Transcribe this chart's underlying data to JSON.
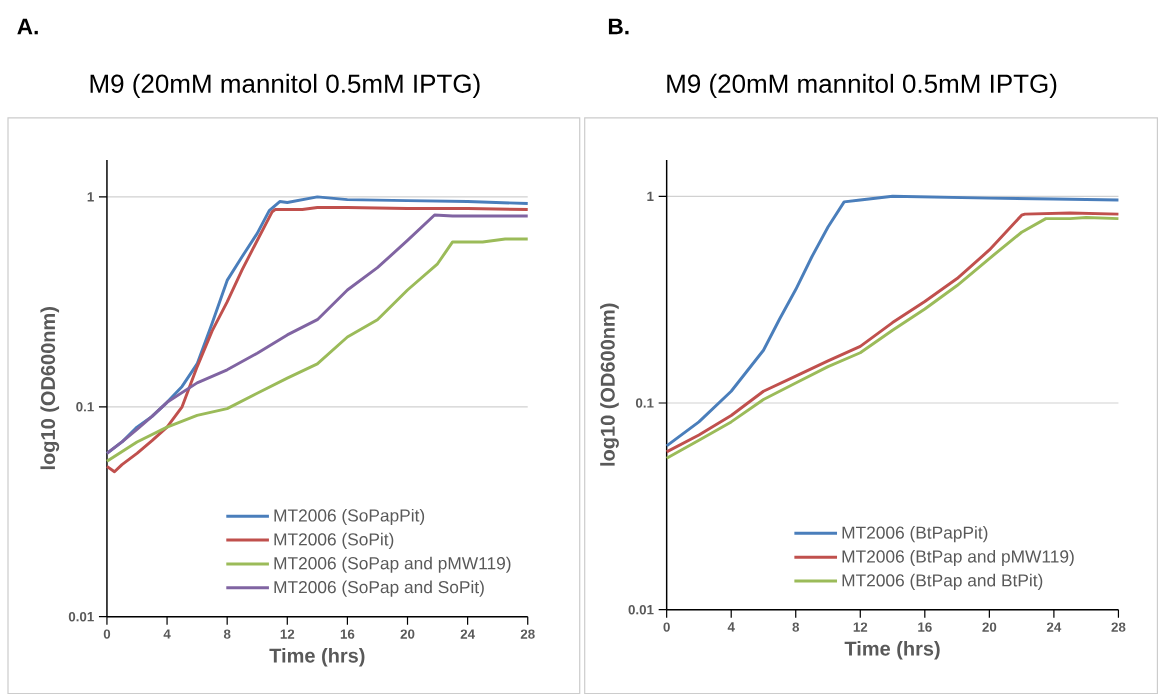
{
  "chart_data": [
    {
      "type": "line",
      "title": "M9 (20mM mannitol 0.5mM IPTG)",
      "annotations": [
        "A."
      ],
      "xlabel": "Time (hrs)",
      "ylabel": "log10 (OD600nm)",
      "log": "y",
      "grid": "y",
      "legend": "bottom",
      "marker": "none",
      "line_style": "solid",
      "xlim": [
        0,
        28
      ],
      "xticks": [
        0,
        4,
        8,
        12,
        16,
        20,
        24,
        28
      ],
      "ylim": [
        0.01,
        1.5
      ],
      "yticks": [
        0.01,
        0.1,
        1
      ],
      "series": [
        {
          "name": "MT2006 (SoPapPit)",
          "color": "#4a7ebb",
          "x": [
            0,
            1,
            2,
            3,
            4,
            5,
            6,
            7,
            8,
            9,
            10,
            10.8,
            11.5,
            12,
            14,
            16,
            20,
            24,
            28
          ],
          "values": [
            0.06,
            0.068,
            0.08,
            0.09,
            0.105,
            0.125,
            0.16,
            0.25,
            0.4,
            0.52,
            0.67,
            0.86,
            0.95,
            0.94,
            1.0,
            0.97,
            0.96,
            0.95,
            0.93
          ]
        },
        {
          "name": "MT2006 (SoPit)",
          "color": "#c0504d",
          "x": [
            0,
            0.5,
            1,
            2,
            3,
            4,
            5,
            6,
            7,
            8,
            9,
            10,
            11,
            11.2,
            13,
            14,
            16,
            20,
            24,
            28
          ],
          "values": [
            0.052,
            0.049,
            0.053,
            0.06,
            0.069,
            0.08,
            0.1,
            0.155,
            0.23,
            0.316,
            0.45,
            0.62,
            0.85,
            0.87,
            0.87,
            0.89,
            0.89,
            0.88,
            0.88,
            0.87
          ]
        },
        {
          "name": "MT2006 (SoPap and pMW119)",
          "color": "#9bbb59",
          "x": [
            0,
            2,
            4,
            6,
            8,
            10,
            12,
            14,
            16,
            18,
            20,
            22,
            23,
            25,
            26.5,
            28
          ],
          "values": [
            0.055,
            0.068,
            0.08,
            0.091,
            0.098,
            0.116,
            0.137,
            0.16,
            0.215,
            0.26,
            0.36,
            0.48,
            0.61,
            0.61,
            0.63,
            0.63
          ]
        },
        {
          "name": "MT2006 (SoPap and SoPit)",
          "color": "#8064a2",
          "x": [
            0,
            1,
            2,
            3,
            4,
            6,
            8,
            10,
            12,
            14,
            16,
            18,
            20,
            21.8,
            23,
            28
          ],
          "values": [
            0.06,
            0.068,
            0.078,
            0.09,
            0.105,
            0.13,
            0.15,
            0.18,
            0.22,
            0.26,
            0.36,
            0.46,
            0.62,
            0.82,
            0.81,
            0.81
          ]
        }
      ]
    },
    {
      "type": "line",
      "title": "M9 (20mM mannitol 0.5mM IPTG)",
      "annotations": [
        "B."
      ],
      "xlabel": "Time (hrs)",
      "ylabel": "log10 (OD600nm)",
      "log": "y",
      "grid": "y",
      "legend": "bottom",
      "marker": "none",
      "line_style": "solid",
      "xlim": [
        0,
        28
      ],
      "xticks": [
        0,
        4,
        8,
        12,
        16,
        20,
        24,
        28
      ],
      "ylim": [
        0.01,
        1.5
      ],
      "yticks": [
        0.01,
        0.1,
        1
      ],
      "series": [
        {
          "name": "MT2006 (BtPapPit)",
          "color": "#4a7ebb",
          "x": [
            0,
            2,
            4,
            6,
            7,
            8,
            9,
            10,
            11,
            12,
            14,
            20,
            24,
            28
          ],
          "values": [
            0.062,
            0.081,
            0.114,
            0.18,
            0.255,
            0.354,
            0.51,
            0.71,
            0.94,
            0.96,
            1.0,
            0.98,
            0.97,
            0.96
          ]
        },
        {
          "name": "MT2006 (BtPap and pMW119)",
          "color": "#c0504d",
          "x": [
            0,
            2,
            4,
            6,
            8,
            10,
            12,
            14,
            16,
            18,
            20,
            22,
            22.2,
            25,
            28
          ],
          "values": [
            0.058,
            0.07,
            0.087,
            0.114,
            0.135,
            0.16,
            0.188,
            0.245,
            0.31,
            0.4,
            0.55,
            0.81,
            0.82,
            0.83,
            0.82
          ]
        },
        {
          "name": "MT2006 (BtPap and BtPit)",
          "color": "#9bbb59",
          "x": [
            0,
            2,
            4,
            6,
            8,
            10,
            12,
            14,
            16,
            18,
            20,
            22,
            23.5,
            25,
            26,
            28
          ],
          "values": [
            0.054,
            0.066,
            0.081,
            0.104,
            0.125,
            0.15,
            0.175,
            0.225,
            0.285,
            0.37,
            0.5,
            0.67,
            0.78,
            0.78,
            0.79,
            0.78
          ]
        }
      ]
    }
  ]
}
